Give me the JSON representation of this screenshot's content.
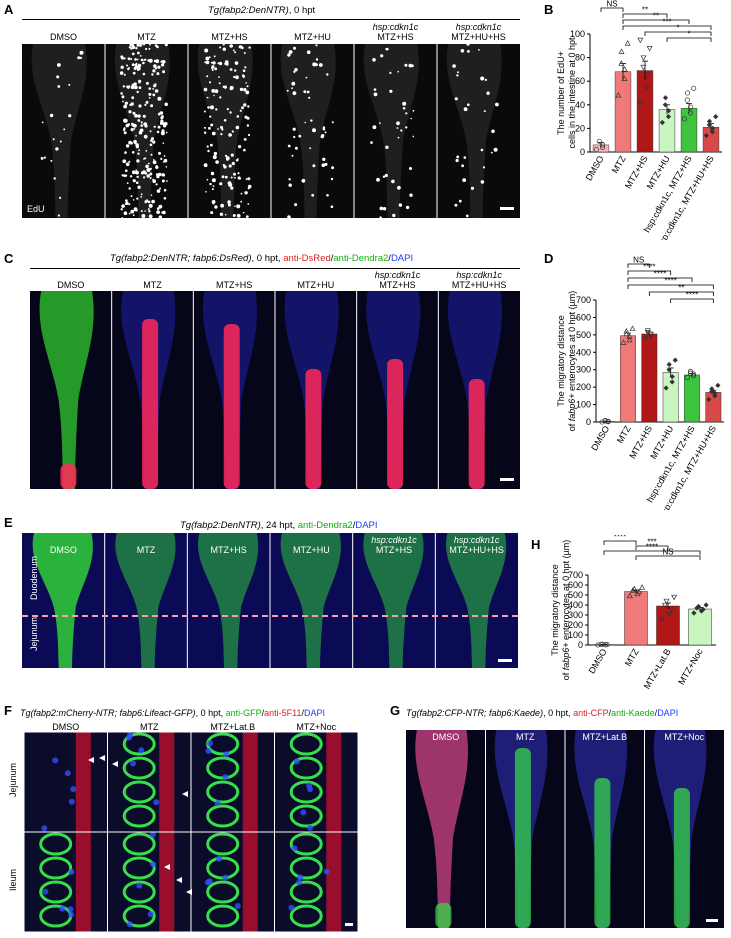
{
  "panels": {
    "A": {
      "label": "A",
      "title_main": "Tg(fabp2:DenNTR)",
      "title_rest": ", 0 hpt",
      "columns": [
        {
          "line1": "",
          "line2": "DMSO"
        },
        {
          "line1": "",
          "line2": "MTZ"
        },
        {
          "line1": "",
          "line2": "MTZ+HS"
        },
        {
          "line1": "",
          "line2": "MTZ+HU"
        },
        {
          "line1": "hsp:cdkn1c",
          "line2": "MTZ+HS"
        },
        {
          "line1": "hsp:cdkn1c",
          "line2": "MTZ+HU+HS"
        }
      ],
      "corner_label": "EdU"
    },
    "B": {
      "label": "B"
    },
    "C": {
      "label": "C",
      "title_main": "Tg(fabp2:DenNTR; fabp6:DsRed)",
      "title_mid": ", 0 hpt, ",
      "title_red": "anti-DsRed",
      "title_slash1": "/",
      "title_green": "anti-Dendra2",
      "title_slash2": "/",
      "title_blue": "DAPI",
      "columns": [
        {
          "line1": "",
          "line2": "DMSO"
        },
        {
          "line1": "",
          "line2": "MTZ"
        },
        {
          "line1": "",
          "line2": "MTZ+HS"
        },
        {
          "line1": "",
          "line2": "MTZ+HU"
        },
        {
          "line1": "hsp:cdkn1c",
          "line2": "MTZ+HS"
        },
        {
          "line1": "hsp:cdkn1c",
          "line2": "MTZ+HU+HS"
        }
      ]
    },
    "D": {
      "label": "D"
    },
    "E": {
      "label": "E",
      "title_main": "Tg(fabp2:DenNTR)",
      "title_mid": ", 24 hpt, ",
      "title_green": "anti-Dendra2",
      "title_slash": "/",
      "title_blue": "DAPI",
      "columns": [
        {
          "line1": "",
          "line2": "DMSO"
        },
        {
          "line1": "",
          "line2": "MTZ"
        },
        {
          "line1": "",
          "line2": "MTZ+HS"
        },
        {
          "line1": "",
          "line2": "MTZ+HU"
        },
        {
          "line1": "hsp:cdkn1c",
          "line2": "MTZ+HS"
        },
        {
          "line1": "hsp:cdkn1c",
          "line2": "MTZ+HU+HS"
        }
      ],
      "region_top": "Duodenum",
      "region_bottom": "Jejunum"
    },
    "F": {
      "label": "F",
      "title_main": "Tg(fabp2:mCherry-NTR; fabp6:Lifeact-GFP)",
      "title_mid": ", 0 hpt, ",
      "title_green": "anti-GFP",
      "title_slash1": "/",
      "title_red": "anti-5F11",
      "title_slash2": "/",
      "title_blue": "DAPI",
      "columns": [
        "DMSO",
        "MTZ",
        "MTZ+Lat.B",
        "MTZ+Noc"
      ],
      "rows": [
        "Jejunum",
        "Ileum"
      ]
    },
    "G": {
      "label": "G",
      "title_main": "Tg(fabp2:CFP-NTR; fabp6:Kaede)",
      "title_mid": ", 0 hpt, ",
      "title_red": "anti-CFP",
      "title_slash1": "/",
      "title_green": "anti-Kaede",
      "title_slash2": "/",
      "title_blue": "DAPI",
      "columns": [
        "DMSO",
        "MTZ",
        "MTZ+Lat.B",
        "MTZ+Noc"
      ]
    },
    "H": {
      "label": "H"
    }
  },
  "chart_data": [
    {
      "panel": "B",
      "type": "bar",
      "ylabel_line1": "The number of EdU+",
      "ylabel_line2": "cells in the intestine at 0 hpt",
      "ylim": [
        0,
        100
      ],
      "yticks": [
        0,
        20,
        40,
        60,
        80,
        100
      ],
      "categories": [
        "DMSO",
        "MTZ",
        "MTZ+HS",
        "MTZ+HU",
        "hsp:cdkn1c, MTZ+HS",
        "hsp:cdkn1c, MTZ+HU+HS"
      ],
      "values": [
        6,
        68,
        69,
        36,
        37,
        21
      ],
      "errors": [
        2,
        7,
        8,
        4,
        4,
        3
      ],
      "colors": [
        "#ffb3b3",
        "#f07a7a",
        "#b01818",
        "#c8f5c0",
        "#3ec43e",
        "#d84a4a"
      ],
      "points": [
        [
          2,
          4,
          6,
          9
        ],
        [
          48,
          62,
          70,
          75,
          85,
          92
        ],
        [
          42,
          55,
          65,
          72,
          80,
          88,
          95
        ],
        [
          25,
          30,
          35,
          40,
          46
        ],
        [
          28,
          33,
          38,
          44,
          50,
          54
        ],
        [
          14,
          17,
          20,
          23,
          26,
          30
        ]
      ],
      "significance": [
        {
          "from": 0,
          "to": 1,
          "text": "NS"
        },
        {
          "from": 1,
          "to": 3,
          "text": "**"
        },
        {
          "from": 1,
          "to": 4,
          "text": "**"
        },
        {
          "from": 1,
          "to": 5,
          "text": "***"
        },
        {
          "from": 2,
          "to": 5,
          "text": "*"
        },
        {
          "from": 3,
          "to": 5,
          "text": "*"
        }
      ]
    },
    {
      "panel": "D",
      "type": "bar",
      "ylabel_line1": "The migratory distance",
      "ylabel_line2_pre": "of ",
      "ylabel_line2_it": "fabp6+",
      "ylabel_line2_post": " enterocytes at 0 hpt (µm)",
      "ylim": [
        0,
        700
      ],
      "yticks": [
        0,
        100,
        200,
        300,
        400,
        500,
        600,
        700
      ],
      "categories": [
        "DMSO",
        "MTZ",
        "MTZ+HS",
        "MTZ+HU",
        "hsp:cdkn1c, MTZ+HS",
        "hsp:cdkn1c, MTZ+HU+HS"
      ],
      "values": [
        3,
        495,
        505,
        285,
        270,
        170
      ],
      "errors": [
        2,
        15,
        12,
        25,
        8,
        12
      ],
      "colors": [
        "#ffb3b3",
        "#f07a7a",
        "#b01818",
        "#c8f5c0",
        "#3ec43e",
        "#d84a4a"
      ],
      "points": [
        [
          0,
          2,
          4,
          6,
          8
        ],
        [
          455,
          470,
          490,
          505,
          520,
          535
        ],
        [
          480,
          495,
          505,
          515,
          525
        ],
        [
          195,
          230,
          260,
          300,
          330,
          355
        ],
        [
          255,
          265,
          275,
          280,
          290
        ],
        [
          130,
          150,
          165,
          175,
          190,
          210
        ]
      ],
      "significance": [
        {
          "from": 1,
          "to": 2,
          "text": "NS"
        },
        {
          "from": 1,
          "to": 3,
          "text": "****"
        },
        {
          "from": 1,
          "to": 4,
          "text": "****"
        },
        {
          "from": 1,
          "to": 5,
          "text": "****"
        },
        {
          "from": 2,
          "to": 5,
          "text": "**"
        },
        {
          "from": 3,
          "to": 5,
          "text": "****"
        }
      ]
    },
    {
      "panel": "H",
      "type": "bar",
      "ylabel_line1": "The migratory distance",
      "ylabel_line2_pre": "of ",
      "ylabel_line2_it": "fabp6+",
      "ylabel_line2_post": " enterocytes at 0 hpt (µm)",
      "ylim": [
        0,
        700
      ],
      "yticks": [
        0,
        100,
        200,
        300,
        400,
        500,
        600,
        700
      ],
      "categories": [
        "DMSO",
        "MTZ",
        "MTZ+Lat.B",
        "MTZ+Noc"
      ],
      "values": [
        4,
        535,
        390,
        360
      ],
      "errors": [
        2,
        15,
        30,
        15
      ],
      "colors": [
        "#ffb3b3",
        "#f07a7a",
        "#b01818",
        "#c8f5c0"
      ],
      "points": [
        [
          0,
          2,
          4,
          6,
          8
        ],
        [
          490,
          510,
          530,
          545,
          560,
          575
        ],
        [
          260,
          310,
          360,
          400,
          440,
          480
        ],
        [
          320,
          340,
          355,
          370,
          385,
          400
        ]
      ],
      "significance": [
        {
          "from": 0,
          "to": 1,
          "text": "****"
        },
        {
          "from": 1,
          "to": 2,
          "text": "***"
        },
        {
          "from": 0,
          "to": 3,
          "text": "****"
        },
        {
          "from": 1,
          "to": 3,
          "text": "NS"
        }
      ]
    }
  ]
}
